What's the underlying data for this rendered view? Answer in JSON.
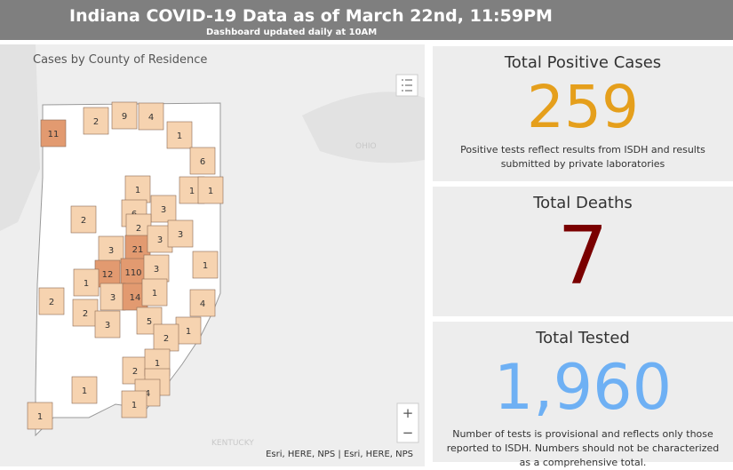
{
  "header": {
    "title": "Indiana COVID-19 Data as of March 22nd, 11:59PM",
    "subtitle": "Dashboard updated daily at 10AM"
  },
  "map": {
    "title": "Cases by County of Residence",
    "attribution": "Esri, HERE, NPS | Esri, HERE, NPS",
    "zoom_in": "+",
    "zoom_out": "−",
    "place_labels": [
      "OHIO",
      "KENTUCKY"
    ],
    "county_counts": [
      11,
      2,
      9,
      4,
      1,
      6,
      1,
      1,
      1,
      6,
      3,
      2,
      2,
      21,
      3,
      3,
      3,
      1,
      12,
      110,
      3,
      1,
      3,
      14,
      1,
      2,
      4,
      2,
      3,
      5,
      1,
      2,
      2,
      1,
      5,
      4,
      1,
      1,
      1
    ]
  },
  "cards": [
    {
      "title": "Total Positive Cases",
      "value": "259",
      "note": "Positive tests reflect results from ISDH and results submitted by private laboratories"
    },
    {
      "title": "Total Deaths",
      "value": "7"
    },
    {
      "title": "Total Tested",
      "value": "1,960",
      "note": "Number of tests is provisional and reflects only those reported to ISDH. Numbers should not be characterized as a comprehensive total."
    }
  ]
}
